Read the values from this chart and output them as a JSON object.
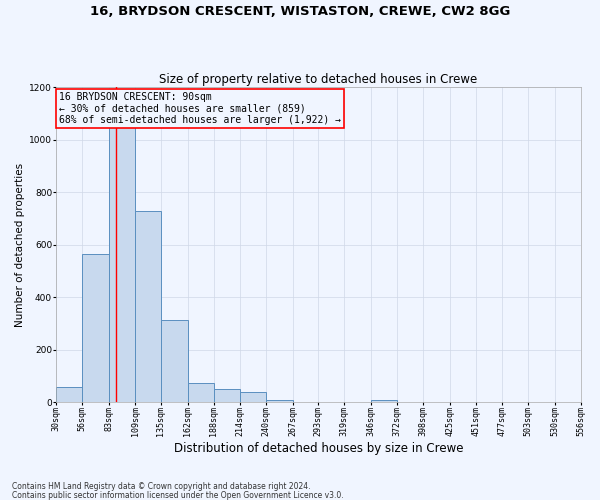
{
  "title": "16, BRYDSON CRESCENT, WISTASTON, CREWE, CW2 8GG",
  "subtitle": "Size of property relative to detached houses in Crewe",
  "xlabel": "Distribution of detached houses by size in Crewe",
  "ylabel": "Number of detached properties",
  "footer1": "Contains HM Land Registry data © Crown copyright and database right 2024.",
  "footer2": "Contains public sector information licensed under the Open Government Licence v3.0.",
  "bin_edges": [
    30,
    56,
    83,
    109,
    135,
    162,
    188,
    214,
    240,
    267,
    293,
    319,
    346,
    372,
    398,
    425,
    451,
    477,
    503,
    530,
    556
  ],
  "bar_heights": [
    57,
    565,
    1080,
    730,
    315,
    75,
    50,
    40,
    10,
    0,
    0,
    0,
    8,
    0,
    0,
    0,
    0,
    0,
    0,
    0
  ],
  "bar_facecolor": "#c8d9ee",
  "bar_edgecolor": "#5a8fc0",
  "bar_linewidth": 0.7,
  "property_size": 90,
  "property_line_color": "red",
  "annotation_text": "16 BRYDSON CRESCENT: 90sqm\n← 30% of detached houses are smaller (859)\n68% of semi-detached houses are larger (1,922) →",
  "annotation_box_color": "red",
  "ylim": [
    0,
    1200
  ],
  "yticks": [
    0,
    200,
    400,
    600,
    800,
    1000,
    1200
  ],
  "background_color": "#f0f5ff",
  "grid_color": "#d0d8e8",
  "title_fontsize": 9.5,
  "subtitle_fontsize": 8.5,
  "xlabel_fontsize": 8.5,
  "ylabel_fontsize": 7.5,
  "annotation_fontsize": 7.0,
  "tick_fontsize": 6.0,
  "footer_fontsize": 5.5
}
